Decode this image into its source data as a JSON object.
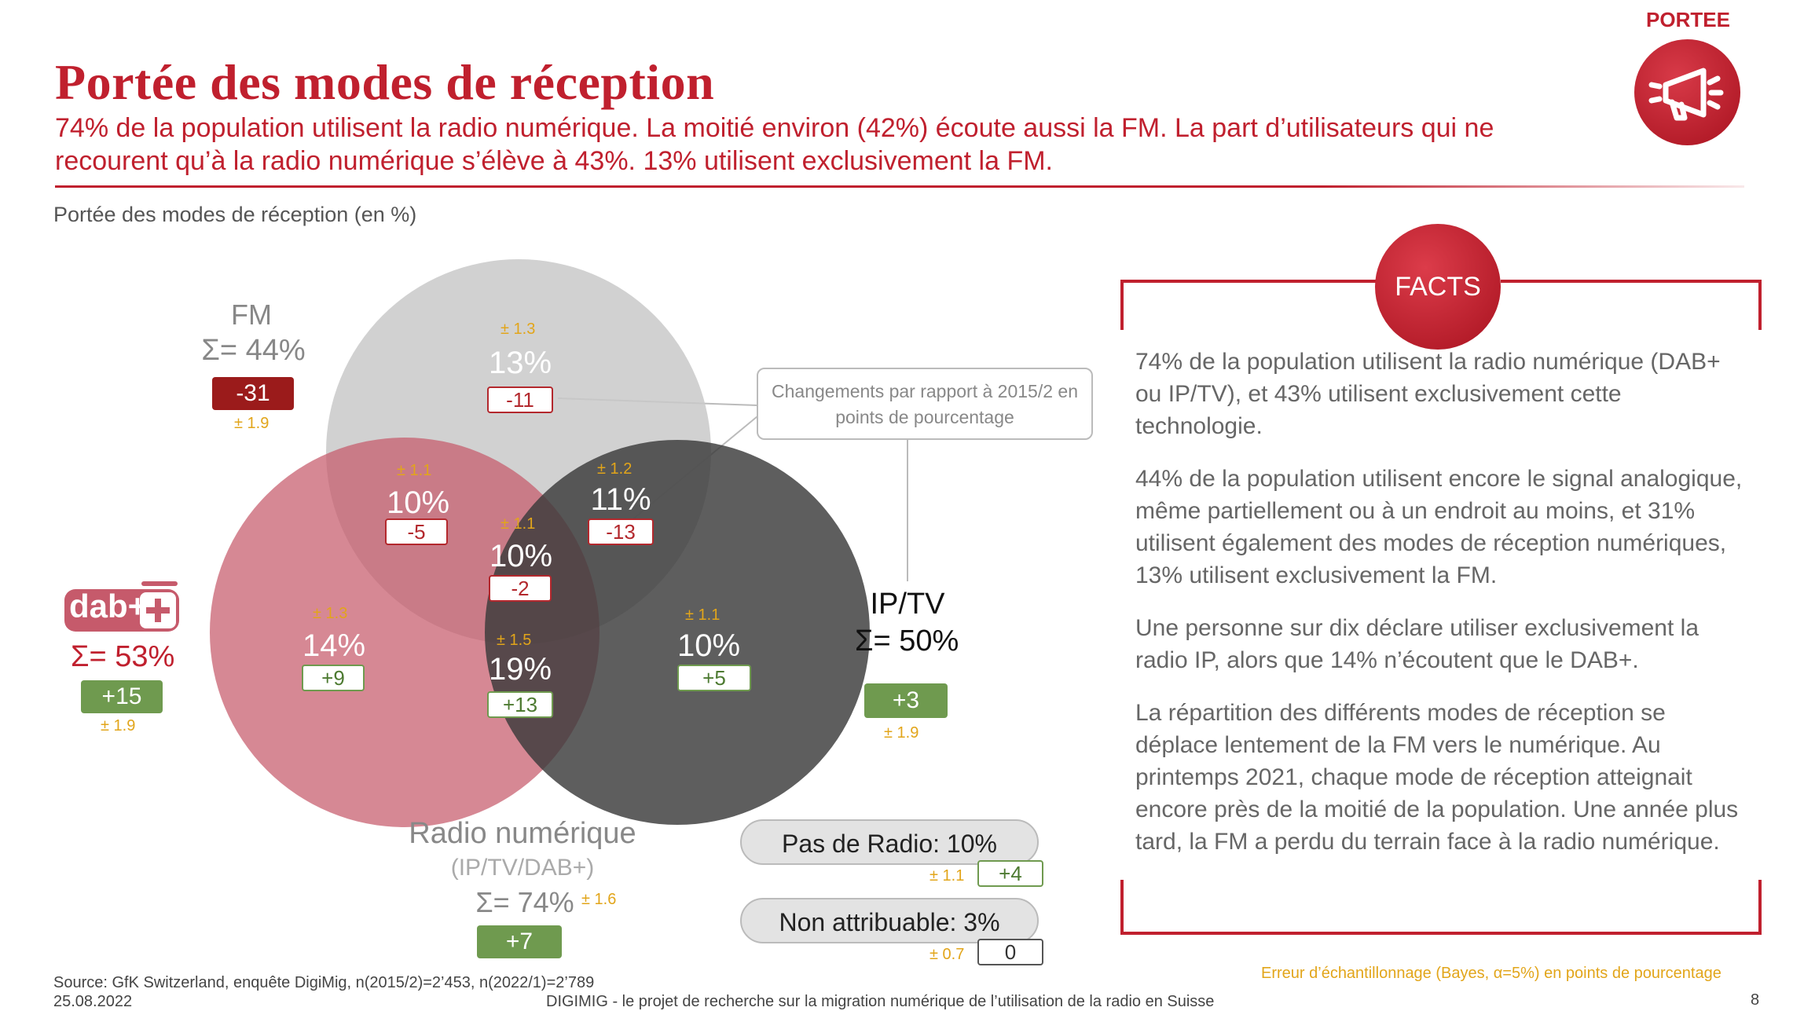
{
  "header": {
    "title": "Portée des modes de réception",
    "subtitle": "74% de la population utilisent la radio numérique. La moitié environ (42%) écoute aussi la FM. La part d’utilisateurs qui ne recourent qu’à la radio numérique s’élève à 43%. 13% utilisent exclusivement la FM.",
    "section_label": "PORTEE",
    "section_icon": "megaphone-icon"
  },
  "chart_caption": "Portée des modes de réception (en %)",
  "chart_data": {
    "type": "venn",
    "title": "Portée des modes de réception (en %)",
    "sets": [
      {
        "name": "FM",
        "total": "Σ= 44%",
        "change": "-31",
        "error": "± 1.9",
        "color": "#c9c9c9"
      },
      {
        "name": "dab+",
        "total": "Σ= 53%",
        "change": "+15",
        "error": "± 1.9",
        "color": "#c65a6b"
      },
      {
        "name": "IP/TV",
        "total": "Σ= 50%",
        "change": "+3",
        "error": "± 1.9",
        "color": "#4a4a4a"
      }
    ],
    "union": {
      "name": "Radio numérique",
      "sub": "(IP/TV/DAB+)",
      "total": "Σ= 74%",
      "error": "± 1.6",
      "change": "+7"
    },
    "regions": [
      {
        "id": "fm_only",
        "value": "13%",
        "error": "± 1.3",
        "change": "-11"
      },
      {
        "id": "fm_dab",
        "value": "10%",
        "error": "± 1.1",
        "change": "-5"
      },
      {
        "id": "fm_ip",
        "value": "11%",
        "error": "± 1.2",
        "change": "-13"
      },
      {
        "id": "all_three",
        "value": "10%",
        "error": "± 1.1",
        "change": "-2"
      },
      {
        "id": "dab_only",
        "value": "14%",
        "error": "± 1.3",
        "change": "+9"
      },
      {
        "id": "dab_ip",
        "value": "19%",
        "error": "± 1.5",
        "change": "+13"
      },
      {
        "id": "ip_only",
        "value": "10%",
        "error": "± 1.1",
        "change": "+5"
      }
    ],
    "callout": "Changements par rapport à 2015/2 en points de pourcentage",
    "extras": [
      {
        "label": "Pas de Radio: 10%",
        "error": "± 1.1",
        "change": "+4"
      },
      {
        "label": "Non attribuable: 3%",
        "error": "± 0.7",
        "change": "0"
      }
    ],
    "error_note": "Erreur d’échantillonnage (Bayes, α=5%) en points de pourcentage"
  },
  "facts": {
    "label": "FACTS",
    "paragraphs": [
      "74% de la population utilisent la radio numérique (DAB+ ou IP/TV), et 43% utilisent exclusivement cette technologie.",
      "44% de la population utilisent encore le signal analogique, même partiellement ou à un endroit au moins, et 31% utilisent également des modes de réception numériques, 13% utilisent exclusivement la FM.",
      "Une personne sur dix déclare utiliser exclusivement la radio IP, alors que 14% n’écoutent que le DAB+.",
      "La répartition des différents modes de réception se déplace lentement de la FM vers le numérique. Au printemps 2021, chaque mode de réception atteignait encore près de la moitié de la population. Une année plus tard, la FM a perdu du terrain face à la radio numérique."
    ]
  },
  "footer": {
    "source": "Source: GfK Switzerland, enquête DigiMig, n(2015/2)=2’453, n(2022/1)=2’789",
    "date": "25.08.2022",
    "project": "DIGIMIG - le projet de recherche sur la migration numérique de l’utilisation de la radio en Suisse",
    "page": "8"
  },
  "colors": {
    "accent": "#c0202e",
    "green": "#6f9a4f",
    "dark_red": "#9b1b1b",
    "error_orange": "#e2a51a"
  }
}
